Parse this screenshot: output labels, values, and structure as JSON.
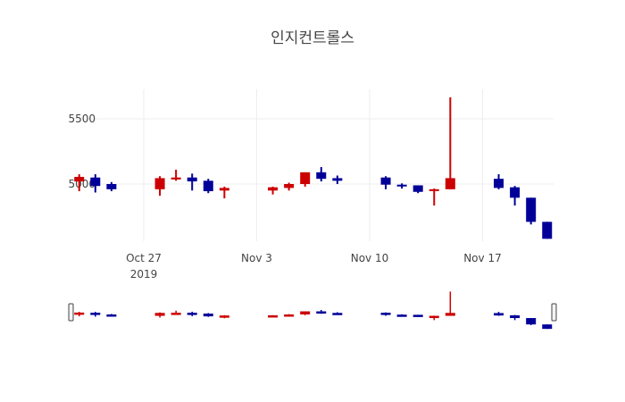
{
  "chart_data": {
    "type": "candlestick",
    "title": "인지컨트롤스",
    "xlabel": "",
    "ylabel": "",
    "y_ticks": [
      5000,
      5500
    ],
    "x_ticks": [
      {
        "date": "2019-10-27",
        "label": "Oct 27",
        "sublabel": "2019"
      },
      {
        "date": "2019-11-03",
        "label": "Nov 3",
        "sublabel": ""
      },
      {
        "date": "2019-11-10",
        "label": "Nov 10",
        "sublabel": ""
      },
      {
        "date": "2019-11-17",
        "label": "Nov 17",
        "sublabel": ""
      }
    ],
    "ylim": [
      4560,
      5740
    ],
    "xlim": [
      "2019-10-22",
      "2019-11-21"
    ],
    "grid": true,
    "increasing_color": "#cc0000",
    "decreasing_color": "#000099",
    "rangeslider": true,
    "candles": [
      {
        "date": "2019-10-23",
        "open": 5020,
        "high": 5075,
        "low": 4945,
        "close": 5055
      },
      {
        "date": "2019-10-24",
        "open": 5050,
        "high": 5075,
        "low": 4935,
        "close": 4985
      },
      {
        "date": "2019-10-25",
        "open": 5000,
        "high": 5015,
        "low": 4945,
        "close": 4960
      },
      {
        "date": "2019-10-28",
        "open": 4960,
        "high": 5060,
        "low": 4910,
        "close": 5045
      },
      {
        "date": "2019-10-29",
        "open": 5035,
        "high": 5110,
        "low": 5025,
        "close": 5050
      },
      {
        "date": "2019-10-30",
        "open": 5050,
        "high": 5080,
        "low": 4950,
        "close": 5020
      },
      {
        "date": "2019-10-31",
        "open": 5025,
        "high": 5040,
        "low": 4930,
        "close": 4945
      },
      {
        "date": "2019-11-01",
        "open": 4950,
        "high": 4980,
        "low": 4890,
        "close": 4970
      },
      {
        "date": "2019-11-04",
        "open": 4950,
        "high": 4980,
        "low": 4920,
        "close": 4975
      },
      {
        "date": "2019-11-05",
        "open": 4970,
        "high": 5010,
        "low": 4950,
        "close": 5000
      },
      {
        "date": "2019-11-06",
        "open": 5000,
        "high": 5090,
        "low": 4980,
        "close": 5090
      },
      {
        "date": "2019-11-07",
        "open": 5090,
        "high": 5130,
        "low": 5020,
        "close": 5040
      },
      {
        "date": "2019-11-08",
        "open": 5045,
        "high": 5065,
        "low": 5000,
        "close": 5025
      },
      {
        "date": "2019-11-11",
        "open": 5050,
        "high": 5060,
        "low": 4960,
        "close": 4995
      },
      {
        "date": "2019-11-12",
        "open": 4995,
        "high": 5005,
        "low": 4965,
        "close": 4985
      },
      {
        "date": "2019-11-13",
        "open": 4990,
        "high": 4990,
        "low": 4930,
        "close": 4940
      },
      {
        "date": "2019-11-14",
        "open": 4950,
        "high": 4965,
        "low": 4835,
        "close": 4960
      },
      {
        "date": "2019-11-15",
        "open": 4960,
        "high": 5665,
        "low": 4960,
        "close": 5045
      },
      {
        "date": "2019-11-18",
        "open": 5040,
        "high": 5075,
        "low": 4960,
        "close": 4970
      },
      {
        "date": "2019-11-19",
        "open": 4975,
        "high": 4985,
        "low": 4835,
        "close": 4895
      },
      {
        "date": "2019-11-20",
        "open": 4895,
        "high": 4895,
        "low": 4690,
        "close": 4710
      },
      {
        "date": "2019-11-21",
        "open": 4710,
        "high": 4710,
        "low": 4580,
        "close": 4580
      }
    ]
  }
}
